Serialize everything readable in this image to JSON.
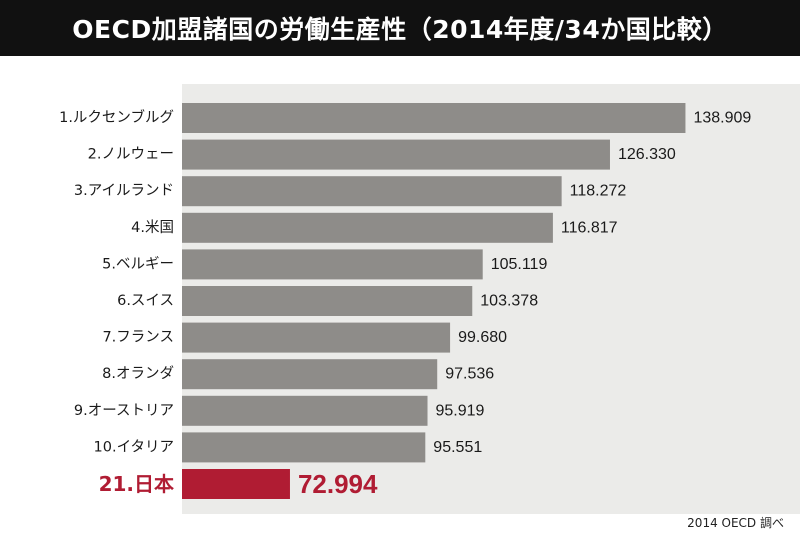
{
  "title": "OECD加盟諸国の労働生産性（2014年度/34か国比較）",
  "footnote": "2014 OECD 調べ",
  "colors": {
    "bar_default": "#8e8c89",
    "bar_highlight": "#b01c33",
    "label_highlight": "#b01c33",
    "plot_background": "#ebebe9",
    "title_background": "#111111"
  },
  "chart_data": {
    "type": "bar",
    "orientation": "horizontal",
    "title": "OECD加盟諸国の労働生産性（2014年度/34か国比較）",
    "xlabel": "",
    "ylabel": "",
    "xlim": [
      60,
      140
    ],
    "grid": false,
    "legend": "none",
    "categories": [
      "1.ルクセンブルグ",
      "2.ノルウェー",
      "3.アイルランド",
      "4.米国",
      "5.ベルギー",
      "6.スイス",
      "7.フランス",
      "8.オランダ",
      "9.オーストリア",
      "10.イタリア",
      "21.日本"
    ],
    "values": [
      138.909,
      126.33,
      118.272,
      116.817,
      105.119,
      103.378,
      99.68,
      97.536,
      95.919,
      95.551,
      72.994
    ],
    "value_labels": [
      "138.909",
      "126.330",
      "118.272",
      "116.817",
      "105.119",
      "103.378",
      "99.680",
      "97.536",
      "95.919",
      "95.551",
      "72.994"
    ],
    "highlight": [
      false,
      false,
      false,
      false,
      false,
      false,
      false,
      false,
      false,
      false,
      true
    ]
  }
}
